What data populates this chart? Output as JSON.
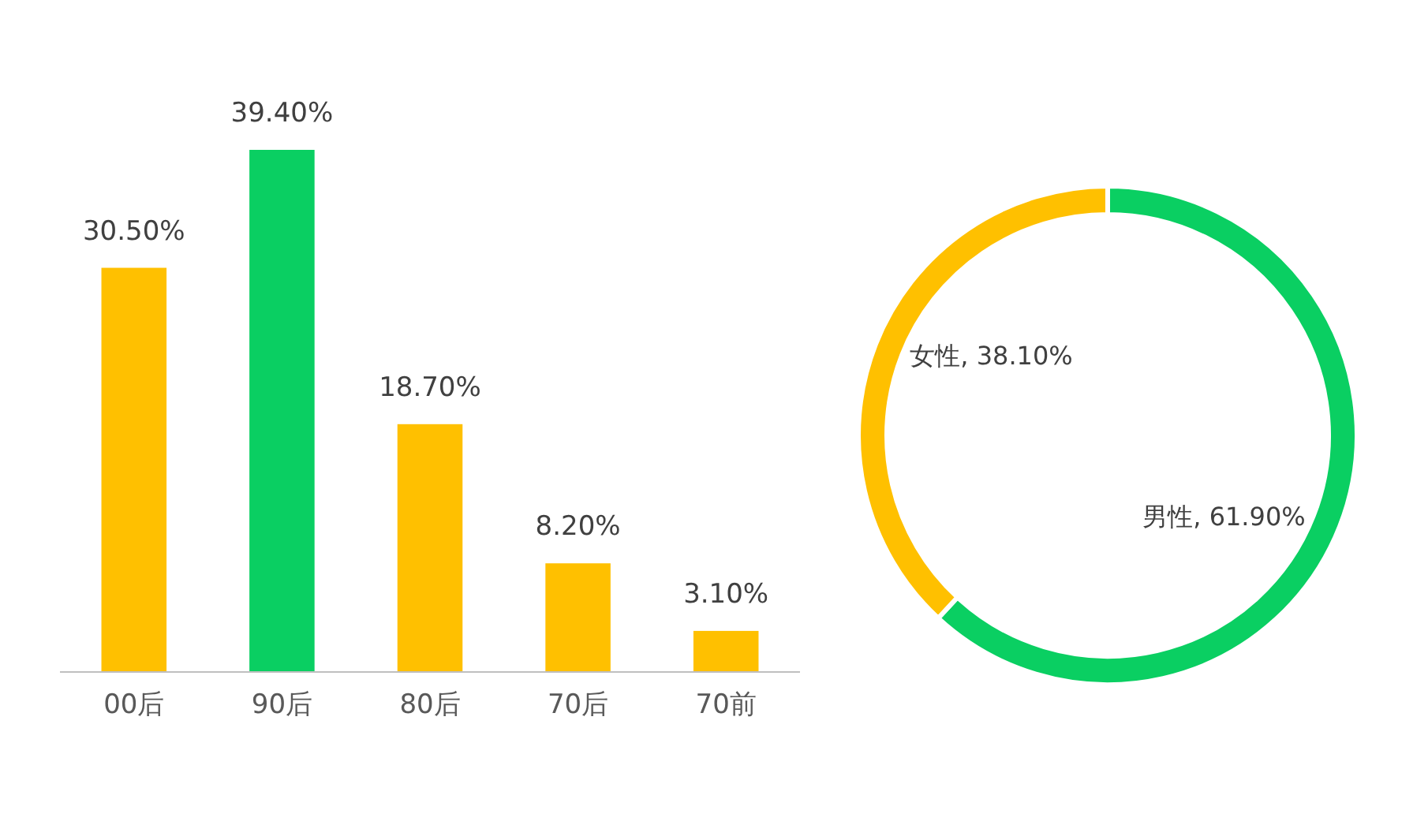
{
  "chart_data": [
    {
      "type": "bar",
      "categories": [
        "00后",
        "90后",
        "80后",
        "70后",
        "70前"
      ],
      "values": [
        30.5,
        39.4,
        18.7,
        8.2,
        3.1
      ],
      "colors": [
        "#ffc000",
        "#0acf62",
        "#ffc000",
        "#ffc000",
        "#ffc000"
      ],
      "value_labels": [
        "30.50%",
        "39.40%",
        "18.70%",
        "8.20%",
        "3.10%"
      ]
    },
    {
      "type": "donut",
      "categories": [
        "男性",
        "女性"
      ],
      "values": [
        61.9,
        38.1
      ],
      "colors": [
        "#0acf62",
        "#ffc000"
      ],
      "value_labels": [
        "61.90%",
        "38.10%"
      ]
    }
  ]
}
